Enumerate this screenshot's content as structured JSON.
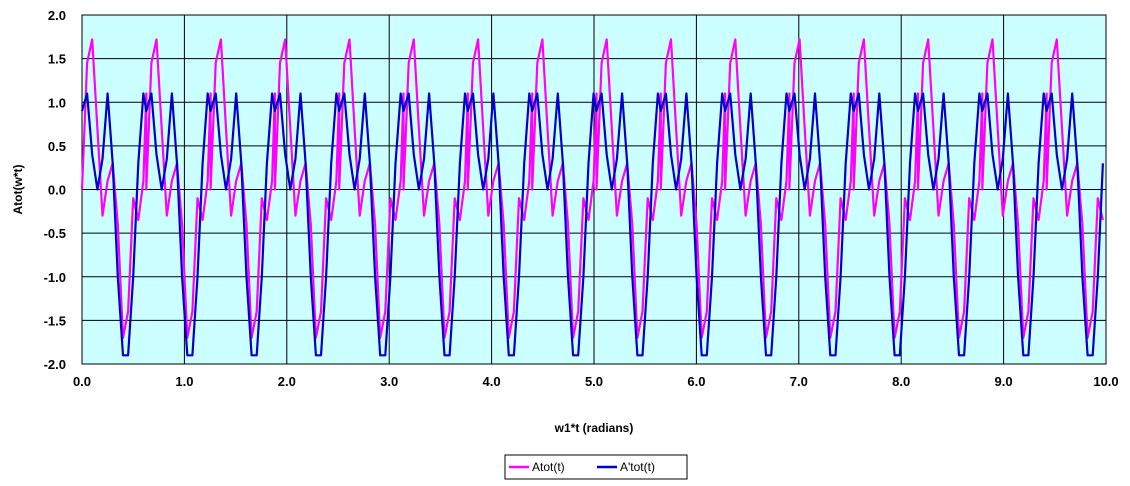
{
  "chart_data": {
    "type": "line",
    "title": "",
    "xlabel": "w1*t (radians)",
    "ylabel": "Atot(w*t)",
    "xlim": [
      0,
      10
    ],
    "ylim": [
      -2,
      2
    ],
    "x_ticks": [
      "0.0",
      "1.0",
      "2.0",
      "3.0",
      "4.0",
      "5.0",
      "6.0",
      "7.0",
      "8.0",
      "9.0",
      "10.0"
    ],
    "y_ticks": [
      "2.0",
      "1.5",
      "1.0",
      "0.5",
      "0.0",
      "-0.5",
      "-1.0",
      "-1.5",
      "-2.0"
    ],
    "grid": true,
    "plot_background": "#ccffff",
    "legend": {
      "position": "bottom-center"
    },
    "series": [
      {
        "name": "Atot(t)",
        "color": "#ff00ff",
        "description_of_shape": "periodic, period ~0.628 rad",
        "x": [
          0.0,
          0.05,
          0.1,
          0.15,
          0.2,
          0.25,
          0.3,
          0.35,
          0.4,
          0.45,
          0.5,
          0.55,
          0.6,
          0.628
        ],
        "y": [
          0.0,
          1.45,
          1.72,
          0.7,
          -0.3,
          0.1,
          0.3,
          -0.4,
          -1.7,
          -1.4,
          -0.1,
          -0.35,
          0.1,
          1.1
        ]
      },
      {
        "name": "A'tot(t)",
        "color": "#0000cc",
        "x": [
          0.0,
          0.05,
          0.1,
          0.15,
          0.2,
          0.25,
          0.3,
          0.35,
          0.4,
          0.45,
          0.5,
          0.55,
          0.6,
          0.628
        ],
        "y": [
          0.9,
          1.1,
          0.4,
          0.0,
          0.35,
          1.1,
          0.3,
          -1.0,
          -1.9,
          -1.9,
          -1.0,
          0.3,
          1.1,
          0.9
        ]
      }
    ]
  }
}
